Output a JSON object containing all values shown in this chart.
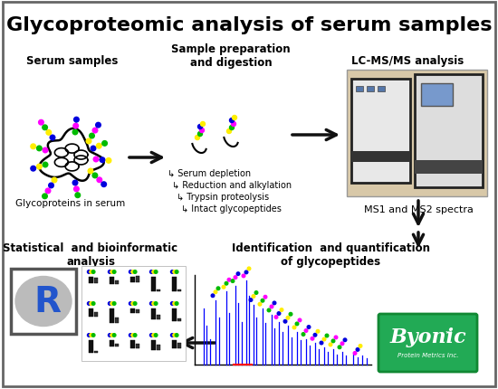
{
  "title": "Glycoproteomic analysis of serum samples",
  "title_fontsize": 16,
  "title_fontweight": "bold",
  "bg_color": "#ffffff",
  "border_color": "#555555",
  "labels": {
    "serum_samples": "Serum samples",
    "sample_prep": "Sample preparation\nand digestion",
    "lcms": "LC-MS/MS analysis",
    "ms_spectra": "MS1 and MS2 spectra",
    "id_quant": "Identification  and quantification\nof glycopeptides",
    "stat_analysis": "Statistical  and bioinformatic\nanalysis",
    "glycoproteins": "Glycoproteins in serum",
    "steps": [
      "↳ Serum depletion",
      "↳ Reduction and alkylation",
      "↳ Trypsin proteolysis",
      "↳ Intact glycopeptides"
    ]
  },
  "colors": {
    "blue": "#0000dd",
    "yellow": "#ffee00",
    "green": "#00bb00",
    "magenta": "#ff00ff",
    "red": "#ff0000",
    "byonic_bg": "#22aa55",
    "byonic_border": "#118833",
    "arrow_color": "#111111"
  }
}
